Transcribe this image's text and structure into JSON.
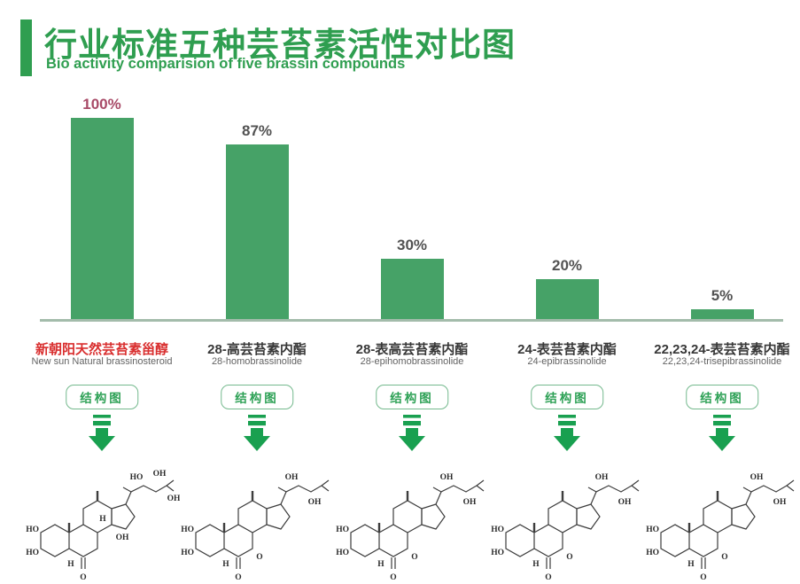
{
  "header": {
    "title_zh": "行业标准五种芸苔素活性对比图",
    "subtitle_en": "Bio activity comparision of five brassin compounds"
  },
  "chart_data": {
    "type": "bar",
    "title": "行业标准五种芸苔素活性对比图",
    "subtitle": "Bio activity comparision of five brassin compounds",
    "categories": [
      "新朝阳天然芸苔素甾醇 / New sun Natural brassinosteroid",
      "28-高芸苔素内酯 / 28-homobrassinolide",
      "28-表高芸苔素内酯 / 28-epihomobrassinolide",
      "24-表芸苔素内酯 / 24-epibrassinolide",
      "22,23,24-表芸苔素内酯 / 22,23,24-trisepibrassinolide"
    ],
    "values": [
      100,
      87,
      30,
      20,
      5
    ],
    "value_labels": [
      "100%",
      "87%",
      "30%",
      "20%",
      "5%"
    ],
    "unit": "%",
    "ylim": [
      0,
      100
    ],
    "grid": false,
    "legend": false,
    "bar_color": "#46a267",
    "xlabel": "",
    "ylabel": ""
  },
  "columns": [
    {
      "percent_label": "100%",
      "value": 100,
      "highlight": true,
      "name_zh": "新朝阳天然芸苔素甾醇",
      "name_en": "New sun Natural brassinosteroid",
      "button_label": "结构图",
      "structure": {
        "ho1": "HO",
        "ho2": "HO",
        "oh_top1": "HO",
        "oh_top2": "OH",
        "oh_end": "OH",
        "oh_ring": "OH",
        "h1": "H",
        "h2": "H",
        "o": "O"
      }
    },
    {
      "percent_label": "87%",
      "value": 87,
      "highlight": false,
      "name_zh": "28-高芸苔素内酯",
      "name_en": "28-homobrassinolide",
      "button_label": "结构图",
      "structure": {
        "ho1": "HO",
        "ho2": "HO",
        "oh_top1": "OH",
        "oh_low": "OH",
        "h2": "H",
        "o": "O",
        "ring_o": "O"
      }
    },
    {
      "percent_label": "30%",
      "value": 30,
      "highlight": false,
      "name_zh": "28-表高芸苔素内酯",
      "name_en": "28-epihomobrassinolide",
      "button_label": "结构图",
      "structure": {
        "ho1": "HO",
        "ho2": "HO",
        "oh_top1": "OH",
        "oh_low": "OH",
        "h2": "H",
        "o": "O",
        "ring_o": "O"
      }
    },
    {
      "percent_label": "20%",
      "value": 20,
      "highlight": false,
      "name_zh": "24-表芸苔素内酯",
      "name_en": "24-epibrassinolide",
      "button_label": "结构图",
      "structure": {
        "ho1": "HO",
        "ho2": "HO",
        "oh_top1": "OH",
        "oh_low": "OH",
        "h2": "H",
        "o": "O",
        "ring_o": "O"
      }
    },
    {
      "percent_label": "5%",
      "value": 5,
      "highlight": false,
      "name_zh": "22,23,24-表芸苔素内酯",
      "name_en": "22,23,24-trisepibrassinolide",
      "button_label": "结构图",
      "structure": {
        "ho1": "HO",
        "ho2": "HO",
        "oh_top1": "OH",
        "oh_low": "OH",
        "h2": "H",
        "o": "O",
        "ring_o": "O"
      }
    }
  ],
  "colors": {
    "title_green": "#2f9e50",
    "bar_green": "#46a267",
    "button_green": "#2ea156",
    "arrow_green": "#19a050",
    "axis_gray_green": "#a3bcab",
    "highlight_red": "#d92f2f",
    "value_magenta": "#a84a67",
    "value_gray": "#525252"
  }
}
